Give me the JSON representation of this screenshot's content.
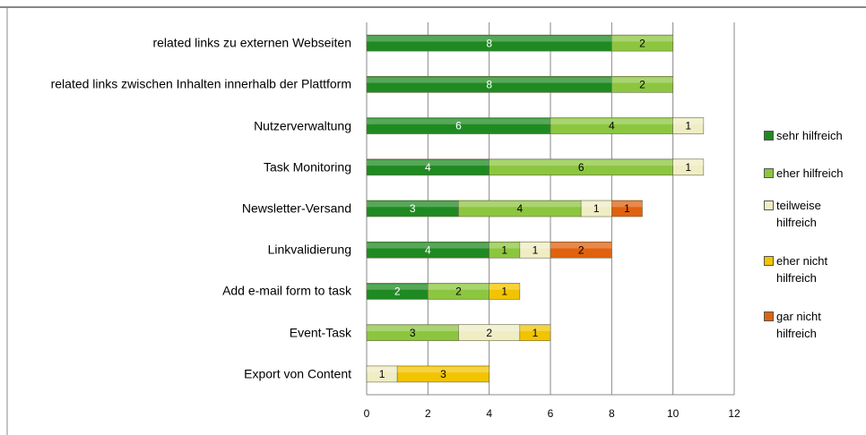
{
  "chart_data": {
    "type": "stacked-bar-horizontal",
    "categories": [
      "related links zu externen Webseiten",
      "related links zwischen Inhalten innerhalb der Plattform",
      "Nutzerverwaltung",
      "Task Monitoring",
      "Newsletter-Versand",
      "Linkvalidierung",
      "Add e-mail form to task",
      "Event-Task",
      "Export von Content"
    ],
    "series": [
      {
        "name": "sehr hilfreich",
        "color": "#1f8a22",
        "values": [
          8,
          8,
          6,
          4,
          3,
          4,
          2,
          null,
          null
        ]
      },
      {
        "name": "eher hilfreich",
        "color": "#8cc63f",
        "values": [
          2,
          2,
          4,
          6,
          4,
          1,
          2,
          3,
          null
        ]
      },
      {
        "name": "teilweise hilfreich",
        "color": "#efedc4",
        "values": [
          null,
          null,
          1,
          1,
          1,
          1,
          null,
          2,
          1
        ]
      },
      {
        "name": "eher nicht hilfreich",
        "color": "#f2c400",
        "values": [
          null,
          null,
          null,
          null,
          null,
          null,
          1,
          1,
          3
        ]
      },
      {
        "name": "gar nicht hilfreich",
        "color": "#e0620f",
        "values": [
          null,
          null,
          null,
          null,
          1,
          2,
          null,
          null,
          null
        ]
      }
    ],
    "xlim": [
      0,
      12
    ],
    "xticks": [
      0,
      2,
      4,
      6,
      8,
      10,
      12
    ],
    "grid": true,
    "legend": "right"
  }
}
